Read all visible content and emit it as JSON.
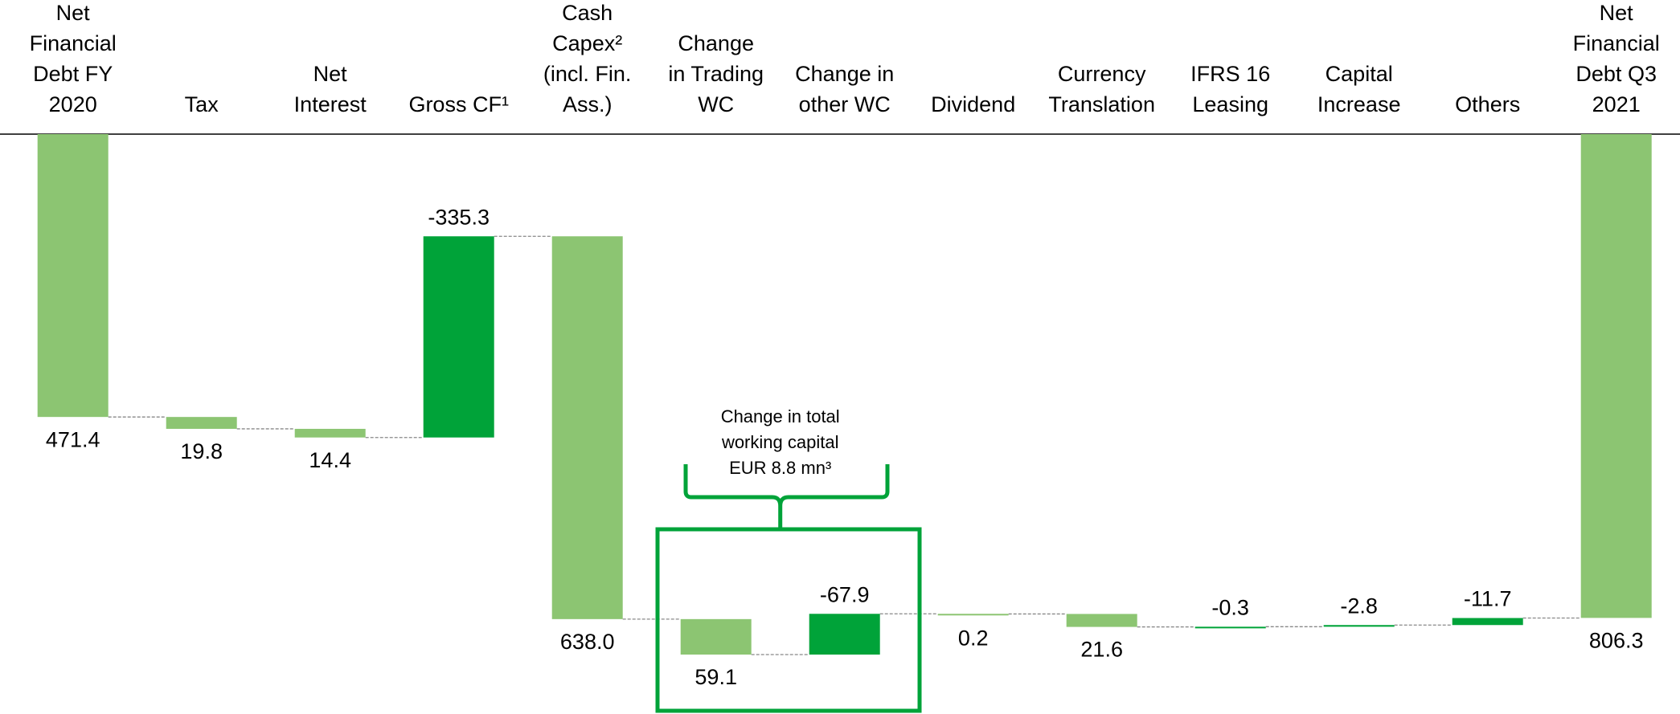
{
  "chart_data": {
    "type": "waterfall",
    "categories": [
      "Net\nFinancial\nDebt FY\n2020",
      "Tax",
      "Net\nInterest",
      "Gross CF¹",
      "Cash\nCapex²\n(incl. Fin.\nAss.)",
      "Change\nin Trading\nWC",
      "Change in\nother WC",
      "Dividend",
      "Currency\nTranslation",
      "IFRS 16\nLeasing",
      "Capital\nIncrease",
      "Others",
      "Net\nFinancial\nDebt Q3\n2021"
    ],
    "values": [
      471.4,
      19.8,
      14.4,
      -335.3,
      638.0,
      59.1,
      -67.9,
      0.2,
      21.6,
      -0.3,
      -2.8,
      -11.7,
      806.3
    ],
    "value_labels": [
      "471.4",
      "19.8",
      "14.4",
      "-335.3",
      "638.0",
      "59.1",
      "-67.9",
      "0.2",
      "21.6",
      "-0.3",
      "-2.8",
      "-11.7",
      "806.3"
    ],
    "color": "#8cc572",
    "negative_color": "#00a339",
    "annotation": "Change in total\nworking capital\nEUR 8.8 mn³"
  }
}
